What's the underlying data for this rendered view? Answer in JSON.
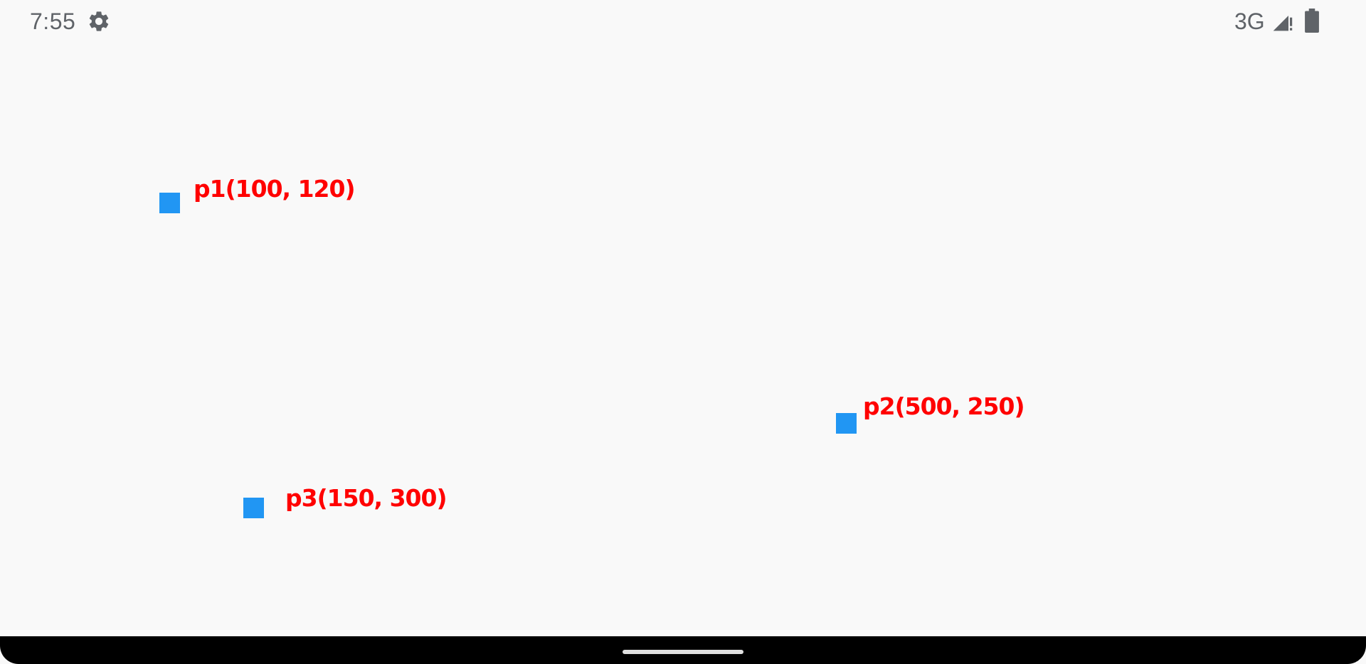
{
  "status_bar": {
    "time": "7:55",
    "network": "3G",
    "icons": {
      "settings": "gear-icon",
      "signal": "signal-icon",
      "battery": "battery-icon"
    }
  },
  "points": [
    {
      "id": "p1",
      "label": "p1(100, 120)"
    },
    {
      "id": "p2",
      "label": "p2(500, 250)"
    },
    {
      "id": "p3",
      "label": "p3(150, 300)"
    }
  ],
  "colors": {
    "marker": "#2196f3",
    "label": "#ff0000",
    "background": "#f9f9f9",
    "status_text": "#5f6368",
    "nav_bar": "#000000"
  }
}
